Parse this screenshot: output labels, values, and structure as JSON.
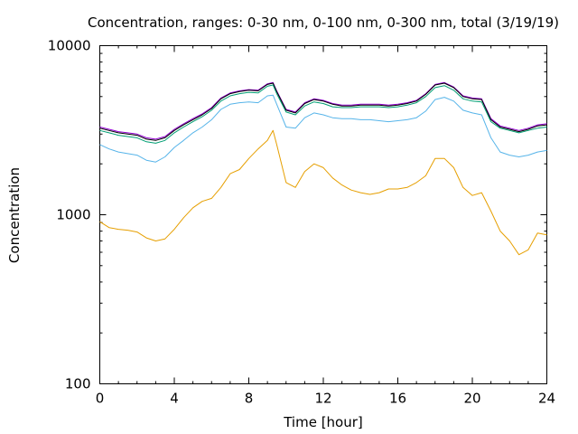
{
  "chart_data": {
    "type": "line",
    "title": "Concentration, ranges: 0-30 nm, 0-100 nm, 0-300 nm, total (3/19/19)",
    "xlabel": "Time [hour]",
    "ylabel": "Concentration",
    "xlim": [
      0,
      24
    ],
    "ylim": [
      100,
      10000
    ],
    "yscale": "log",
    "grid": false,
    "legend": "none",
    "xticks": [
      {
        "v": 0,
        "label": "0"
      },
      {
        "v": 4,
        "label": "4"
      },
      {
        "v": 8,
        "label": "8"
      },
      {
        "v": 12,
        "label": "12"
      },
      {
        "v": 16,
        "label": "16"
      },
      {
        "v": 20,
        "label": "20"
      },
      {
        "v": 24,
        "label": "24"
      }
    ],
    "yticks": [
      {
        "v": 100,
        "label": "100"
      },
      {
        "v": 1000,
        "label": "1000"
      },
      {
        "v": 10000,
        "label": "10000"
      }
    ],
    "x": [
      0,
      0.5,
      1,
      1.5,
      2,
      2.5,
      3,
      3.5,
      4,
      4.5,
      5,
      5.5,
      6,
      6.5,
      7,
      7.5,
      8,
      8.5,
      9,
      9.3,
      9.5,
      10,
      10.5,
      11,
      11.5,
      12,
      12.5,
      13,
      13.5,
      14,
      14.5,
      15,
      15.5,
      16,
      16.5,
      17,
      17.5,
      18,
      18.5,
      19,
      19.5,
      20,
      20.5,
      21,
      21.5,
      22,
      22.5,
      23,
      23.5,
      24
    ],
    "series": [
      {
        "color": "#9400d3",
        "values": [
          3300,
          3200,
          3100,
          3050,
          3000,
          2850,
          2800,
          2900,
          3200,
          3450,
          3700,
          3950,
          4300,
          4900,
          5250,
          5400,
          5500,
          5450,
          5950,
          6050,
          5400,
          4200,
          4050,
          4600,
          4850,
          4750,
          4550,
          4450,
          4450,
          4500,
          4500,
          4500,
          4450,
          4500,
          4600,
          4750,
          5200,
          5900,
          6050,
          5700,
          5050,
          4900,
          4850,
          3700,
          3350,
          3250,
          3150,
          3250,
          3400,
          3450
        ]
      },
      {
        "color": "#000000",
        "values": [
          3250,
          3150,
          3050,
          3000,
          2950,
          2800,
          2750,
          2850,
          3150,
          3400,
          3650,
          3900,
          4250,
          4850,
          5200,
          5350,
          5450,
          5400,
          5900,
          6000,
          5350,
          4150,
          4000,
          4550,
          4800,
          4700,
          4500,
          4400,
          4400,
          4450,
          4450,
          4450,
          4400,
          4450,
          4550,
          4700,
          5150,
          5850,
          6000,
          5650,
          5000,
          4850,
          4800,
          3650,
          3300,
          3200,
          3100,
          3200,
          3350,
          3400
        ]
      },
      {
        "color": "#009e73",
        "values": [
          3150,
          3050,
          2950,
          2900,
          2850,
          2700,
          2650,
          2750,
          3050,
          3300,
          3550,
          3800,
          4150,
          4700,
          5050,
          5200,
          5300,
          5250,
          5750,
          5850,
          5200,
          4050,
          3900,
          4400,
          4650,
          4550,
          4350,
          4300,
          4300,
          4350,
          4350,
          4350,
          4300,
          4350,
          4450,
          4600,
          5000,
          5650,
          5800,
          5450,
          4850,
          4700,
          4650,
          3550,
          3250,
          3150,
          3050,
          3150,
          3250,
          3300
        ]
      },
      {
        "color": "#56b4e9",
        "values": [
          2600,
          2450,
          2350,
          2300,
          2250,
          2100,
          2050,
          2200,
          2500,
          2750,
          3050,
          3300,
          3650,
          4200,
          4500,
          4600,
          4650,
          4600,
          5050,
          5100,
          4500,
          3300,
          3250,
          3750,
          4000,
          3900,
          3750,
          3700,
          3700,
          3650,
          3650,
          3600,
          3550,
          3600,
          3650,
          3750,
          4100,
          4800,
          4950,
          4700,
          4150,
          4000,
          3900,
          2850,
          2350,
          2250,
          2200,
          2250,
          2350,
          2400
        ]
      },
      {
        "color": "#e69f00",
        "values": [
          910,
          840,
          820,
          810,
          790,
          730,
          700,
          720,
          820,
          960,
          1100,
          1200,
          1250,
          1450,
          1750,
          1850,
          2150,
          2450,
          2750,
          3150,
          2600,
          1550,
          1450,
          1800,
          2000,
          1900,
          1650,
          1500,
          1400,
          1350,
          1320,
          1350,
          1420,
          1420,
          1450,
          1550,
          1700,
          2150,
          2150,
          1900,
          1450,
          1300,
          1350,
          1050,
          800,
          700,
          580,
          620,
          780,
          760
        ]
      }
    ]
  }
}
